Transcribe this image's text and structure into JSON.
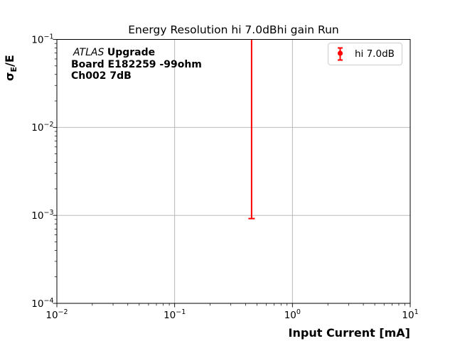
{
  "chart_data": {
    "type": "scatter",
    "subtype": "errorbar",
    "title": "Energy Resolution hi 7.0dBhi gain Run",
    "xlabel": "Input Current [mA]",
    "ylabel": "σ_E/E",
    "ylabel_parts": {
      "base": "σ",
      "sub": "E",
      "suffix": "/E"
    },
    "xscale": "log",
    "yscale": "log",
    "xlim": [
      0.01,
      10
    ],
    "ylim": [
      0.0001,
      0.1
    ],
    "x_tick_exponents": [
      -2,
      -1,
      0,
      1
    ],
    "y_tick_exponents": [
      -4,
      -3,
      -2,
      -1
    ],
    "grid": true,
    "grid_color": "#b0b0b0",
    "frame_color": "#000000",
    "legend": {
      "position": "upper right",
      "border_color": "#cccccc",
      "entries": [
        {
          "label": "hi 7.0dB",
          "color": "#ff0000",
          "marker": "circle-with-errorbar"
        }
      ]
    },
    "series": [
      {
        "name": "hi 7.0dB",
        "color": "#ff0000",
        "marker": "o",
        "points": [
          {
            "x": 0.45,
            "y_err_low": 0.00092,
            "y_err_high": "clipped above top of axis (>0.1)",
            "y_center": "not visible (above axis range)"
          }
        ]
      }
    ],
    "annotation": {
      "line1_italic": "ATLAS",
      "line1_bold": "Upgrade",
      "line2": "Board E182259 -99ohm",
      "line3": "Ch002 7dB"
    }
  }
}
